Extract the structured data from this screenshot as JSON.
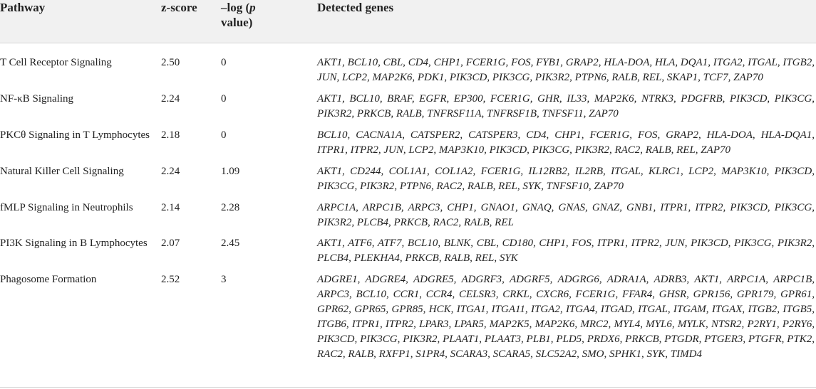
{
  "header": {
    "pathway": "Pathway",
    "zscore": "z-score",
    "logp_prefix": "–log (",
    "logp_italic": "p",
    "logp_suffix": "value)",
    "genes": "Detected genes"
  },
  "rows": [
    {
      "pathway": "T Cell Receptor Signaling",
      "zscore": "2.50",
      "logp": "0",
      "genes": "AKT1, BCL10, CBL, CD4, CHP1, FCER1G, FOS, FYB1, GRAP2, HLA-DOA, HLA, DQA1, ITGA2, ITGAL, ITGB2, JUN, LCP2, MAP2K6, PDK1, PIK3CD, PIK3CG, PIK3R2, PTPN6, RALB, REL, SKAP1, TCF7, ZAP70"
    },
    {
      "pathway": "NF-κB Signaling",
      "zscore": "2.24",
      "logp": "0",
      "genes": "AKT1, BCL10, BRAF, EGFR, EP300, FCER1G, GHR, IL33, MAP2K6, NTRK3, PDGFRB, PIK3CD, PIK3CG, PIK3R2, PRKCB, RALB, TNFRSF11A, TNFRSF1B, TNFSF11, ZAP70"
    },
    {
      "pathway": "PKCθ Signaling in T Lymphocytes",
      "zscore": "2.18",
      "logp": "0",
      "genes": "BCL10, CACNA1A, CATSPER2, CATSPER3, CD4, CHP1, FCER1G, FOS, GRAP2, HLA-DOA, HLA-DQA1, ITPR1, ITPR2, JUN, LCP2, MAP3K10, PIK3CD, PIK3CG, PIK3R2, RAC2, RALB, REL, ZAP70"
    },
    {
      "pathway": "Natural Killer Cell Signaling",
      "zscore": "2.24",
      "logp": "1.09",
      "genes": "AKT1, CD244, COL1A1, COL1A2, FCER1G, IL12RB2, IL2RB, ITGAL, KLRC1, LCP2, MAP3K10, PIK3CD, PIK3CG, PIK3R2, PTPN6, RAC2, RALB, REL, SYK, TNFSF10, ZAP70"
    },
    {
      "pathway": "fMLP Signaling in Neutrophils",
      "zscore": "2.14",
      "logp": "2.28",
      "genes": "ARPC1A, ARPC1B, ARPC3, CHP1, GNAO1, GNAQ, GNAS, GNAZ, GNB1, ITPR1, ITPR2, PIK3CD, PIK3CG, PIK3R2, PLCB4, PRKCB, RAC2, RALB, REL"
    },
    {
      "pathway": "PI3K Signaling in B Lymphocytes",
      "zscore": "2.07",
      "logp": "2.45",
      "genes": "AKT1, ATF6, ATF7, BCL10, BLNK, CBL, CD180, CHP1, FOS, ITPR1, ITPR2, JUN, PIK3CD, PIK3CG, PIK3R2, PLCB4, PLEKHA4, PRKCB, RALB, REL, SYK"
    },
    {
      "pathway": "Phagosome Formation",
      "zscore": "2.52",
      "logp": "3",
      "genes": "ADGRE1, ADGRE4, ADGRE5, ADGRF3, ADGRF5, ADGRG6, ADRA1A, ADRB3, AKT1, ARPC1A, ARPC1B, ARPC3, BCL10, CCR1, CCR4, CELSR3, CRKL, CXCR6, FCER1G, FFAR4, GHSR, GPR156, GPR179, GPR61, GPR62, GPR65, GPR85, HCK, ITGA1, ITGA11, ITGA2, ITGA4, ITGAD, ITGAL, ITGAM, ITGAX, ITGB2, ITGB5, ITGB6, ITPR1, ITPR2, LPAR3, LPAR5, MAP2K5, MAP2K6, MRC2, MYL4, MYL6, MYLK, NTSR2, P2RY1, P2RY6, PIK3CD, PIK3CG, PIK3R2, PLAAT1, PLAAT3, PLB1, PLD5, PRDX6, PRKCB, PTGDR, PTGER3, PTGFR, PTK2, RAC2, RALB, RXFP1, S1PR4, SCARA3, SCARA5, SLC52A2, SMO, SPHK1, SYK, TIMD4"
    }
  ]
}
